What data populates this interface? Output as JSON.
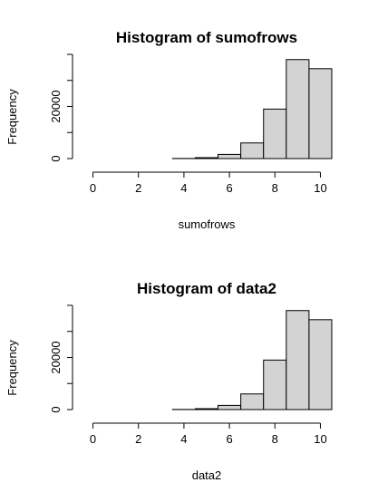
{
  "chart_data": [
    {
      "type": "bar",
      "title": "Histogram of sumofrows",
      "xlabel": "sumofrows",
      "ylabel": "Frequency",
      "bin_edges": [
        -0.5,
        0.5,
        1.5,
        2.5,
        3.5,
        4.5,
        5.5,
        6.5,
        7.5,
        8.5,
        9.5,
        10.5
      ],
      "values": [
        0,
        0,
        0,
        0,
        50,
        350,
        1600,
        6000,
        19000,
        38000,
        34500
      ],
      "xticks": [
        0,
        2,
        4,
        6,
        8,
        10
      ],
      "yticks": [
        0,
        20000
      ],
      "ylim": [
        0,
        40000
      ],
      "grid": false,
      "bar_color": "#d3d3d3",
      "edge_color": "#000000"
    },
    {
      "type": "bar",
      "title": "Histogram of data2",
      "xlabel": "data2",
      "ylabel": "Frequency",
      "bin_edges": [
        -0.5,
        0.5,
        1.5,
        2.5,
        3.5,
        4.5,
        5.5,
        6.5,
        7.5,
        8.5,
        9.5,
        10.5
      ],
      "values": [
        0,
        0,
        0,
        0,
        50,
        350,
        1600,
        6000,
        19000,
        38000,
        34500
      ],
      "xticks": [
        0,
        2,
        4,
        6,
        8,
        10
      ],
      "yticks": [
        0,
        20000
      ],
      "ylim": [
        0,
        40000
      ],
      "grid": false,
      "bar_color": "#d3d3d3",
      "edge_color": "#000000"
    }
  ]
}
